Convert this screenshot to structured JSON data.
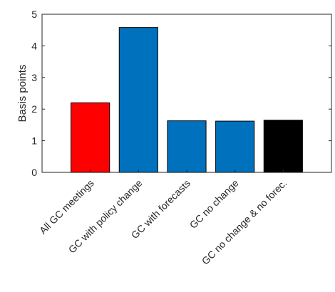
{
  "chart_data": {
    "type": "bar",
    "title": "",
    "xlabel": "",
    "ylabel": "Basis points",
    "ylim": [
      0,
      5
    ],
    "yticks": [
      0,
      1,
      2,
      3,
      4,
      5
    ],
    "grid": false,
    "categories": [
      "All GC meetings",
      "GC with policy change",
      "GC with forecasts",
      "GC no change",
      "GC no change & no forec."
    ],
    "values": [
      2.2,
      4.58,
      1.63,
      1.62,
      1.65
    ],
    "bar_colors": [
      "#ff0000",
      "#0072bd",
      "#0072bd",
      "#0072bd",
      "#000000"
    ]
  }
}
